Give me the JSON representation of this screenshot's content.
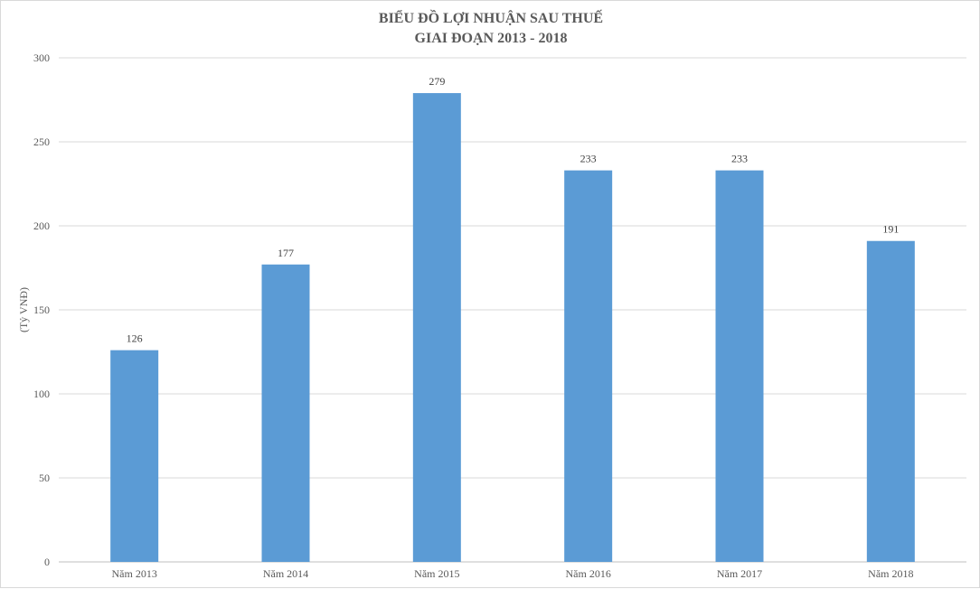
{
  "chart_data": {
    "type": "bar",
    "title": "BIỂU ĐỒ LỢI NHUẬN SAU THUẾ",
    "subtitle": "GIAI ĐOẠN 2013 - 2018",
    "xlabel": "",
    "ylabel": "(Tỷ VNĐ)",
    "categories": [
      "Năm 2013",
      "Năm 2014",
      "Năm 2015",
      "Năm 2016",
      "Năm 2017",
      "Năm 2018"
    ],
    "values": [
      126,
      177,
      279,
      233,
      233,
      191
    ],
    "ylim": [
      0,
      300
    ],
    "yticks": [
      0,
      50,
      100,
      150,
      200,
      250,
      300
    ],
    "grid": true,
    "data_labels": true,
    "bar_color": "#5b9bd5"
  }
}
